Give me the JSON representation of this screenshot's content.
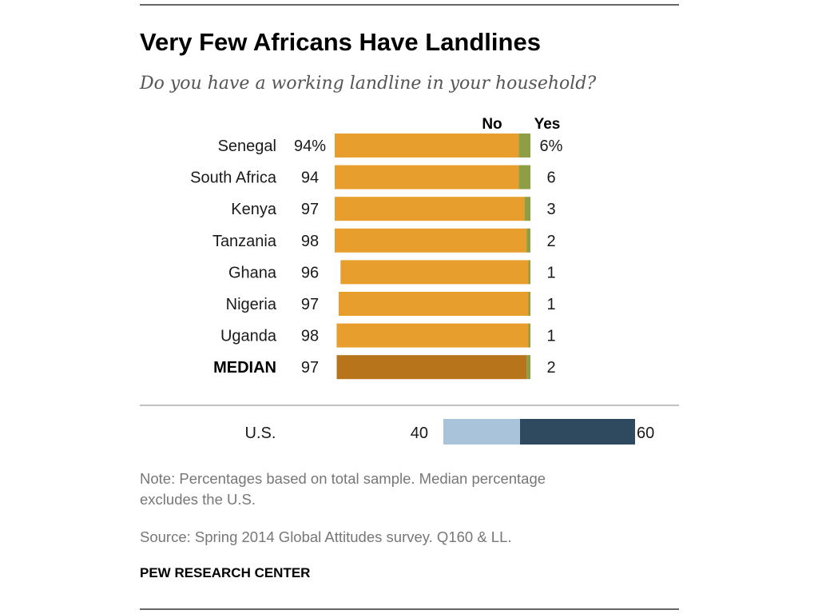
{
  "chart_data": {
    "type": "bar",
    "subtype": "stacked-horizontal",
    "title": "Very Few Africans Have Landlines",
    "subtitle": "Do you have a working landline in your household?",
    "series": [
      {
        "name": "No",
        "values": [
          94,
          94,
          97,
          98,
          96,
          97,
          98,
          97
        ],
        "labels": [
          "94%",
          "94",
          "97",
          "98",
          "96",
          "97",
          "98",
          "97"
        ]
      },
      {
        "name": "Yes",
        "values": [
          6,
          6,
          3,
          2,
          1,
          1,
          1,
          2
        ],
        "labels": [
          "6%",
          "6",
          "3",
          "2",
          "1",
          "1",
          "1",
          "2"
        ]
      }
    ],
    "categories": [
      "Senegal",
      "South Africa",
      "Kenya",
      "Tanzania",
      "Ghana",
      "Nigeria",
      "Uganda",
      "MEDIAN"
    ],
    "median_index": 7,
    "colors": {
      "no": "#e89e2c",
      "yes": "#8e9e45",
      "median_no": "#b8741b",
      "us_no": "#a9c3da",
      "us_yes": "#2f4a5e"
    },
    "us": {
      "label": "U.S.",
      "no": 40,
      "yes": 60,
      "no_label": "40",
      "yes_label": "60"
    },
    "notes": {
      "note_line1": "Note: Percentages based on total sample. Median percentage",
      "note_line2": "excludes the U.S.",
      "source": "Source: Spring 2014 Global Attitudes survey. Q160 & LL.",
      "brand": "PEW RESEARCH CENTER"
    }
  }
}
